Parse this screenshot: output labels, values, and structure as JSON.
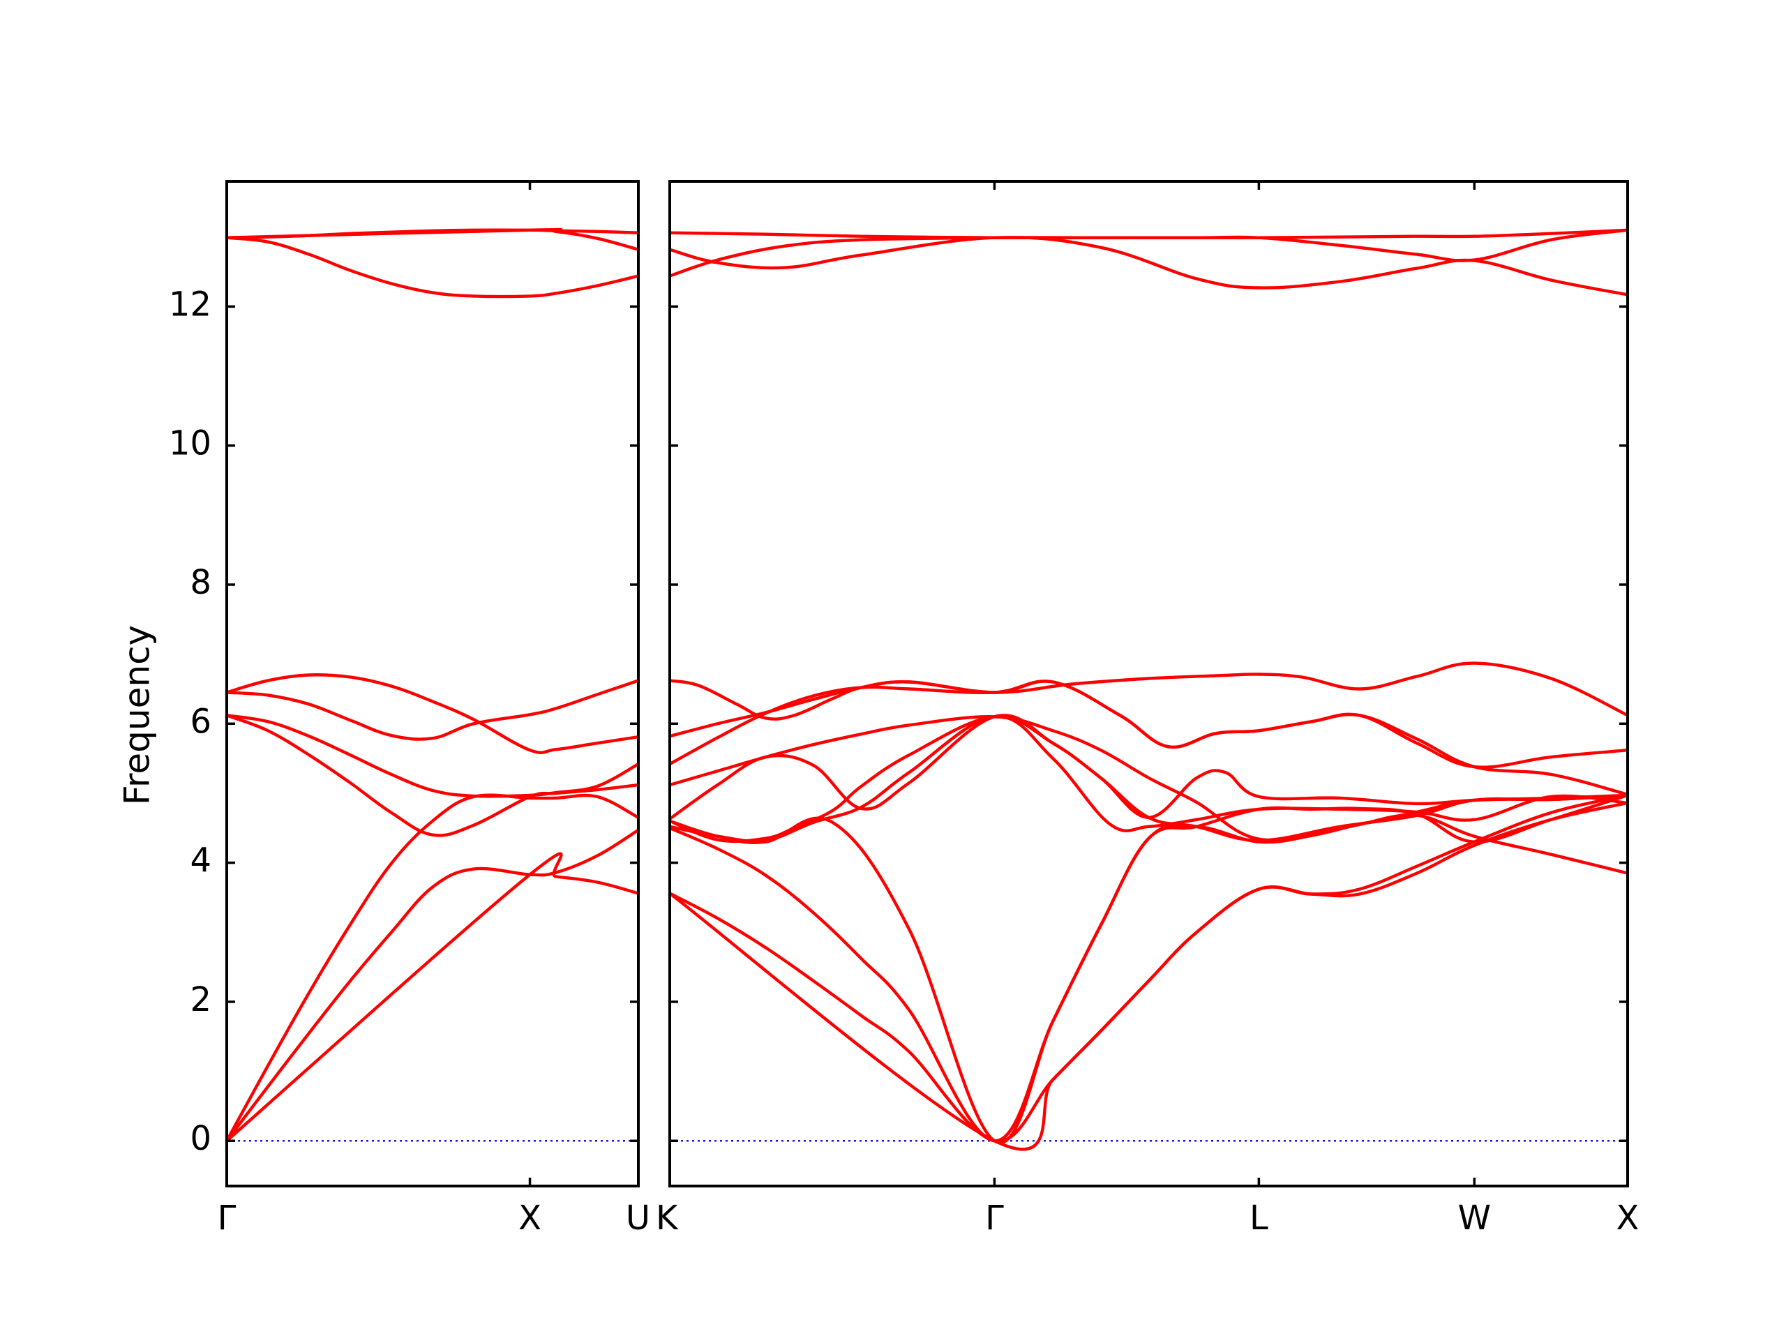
{
  "chart_data": {
    "type": "line",
    "title": "",
    "ylabel": "Frequency",
    "xlabel": "",
    "ylim": [
      -0.65,
      13.8
    ],
    "y_ticks": [
      "0",
      "2",
      "4",
      "6",
      "8",
      "10",
      "12"
    ],
    "grid": false,
    "legend": "none",
    "colors": {
      "bands": "#ff0000",
      "zero_line": "#0000cc",
      "axes": "#000000"
    },
    "panels": [
      {
        "name": "Γ-X-U",
        "x_range": [
          0,
          1
        ],
        "high_symmetry_points": [
          {
            "label": "Γ",
            "x": 0
          },
          {
            "label": "X",
            "x": 0.7365
          },
          {
            "label": "U",
            "x": 1
          }
        ],
        "series": [
          {
            "x": [
              0,
              0.1,
              0.2,
              0.3,
              0.4,
              0.5,
              0.6,
              0.7365,
              0.8,
              0.9,
              1
            ],
            "values": [
              12.99,
              13.0,
              13.02,
              13.05,
              13.07,
              13.09,
              13.1,
              13.1,
              13.09,
              13.08,
              13.06
            ]
          },
          {
            "x": [
              0,
              0.1,
              0.2,
              0.3,
              0.4,
              0.5,
              0.6,
              0.7365,
              0.8,
              0.9,
              1
            ],
            "values": [
              12.99,
              12.93,
              12.75,
              12.52,
              12.33,
              12.2,
              12.15,
              12.15,
              12.19,
              12.3,
              12.44
            ]
          },
          {
            "x": [
              0,
              0.7365,
              0.8,
              0.9,
              1
            ],
            "values": [
              12.99,
              13.1,
              13.08,
              12.98,
              12.82
            ]
          },
          {
            "x": [
              0,
              0.1,
              0.2,
              0.3,
              0.4,
              0.5,
              0.6,
              0.7365,
              0.8,
              0.9,
              1
            ],
            "values": [
              6.45,
              6.62,
              6.7,
              6.67,
              6.54,
              6.32,
              6.06,
              5.62,
              5.63,
              5.72,
              5.81
            ]
          },
          {
            "x": [
              0,
              0.1,
              0.2,
              0.3,
              0.4,
              0.5,
              0.6,
              0.7365,
              0.8,
              0.9,
              1
            ],
            "values": [
              6.45,
              6.41,
              6.28,
              6.05,
              5.83,
              5.79,
              6.0,
              6.13,
              6.22,
              6.42,
              6.62
            ]
          },
          {
            "x": [
              0,
              0.1,
              0.2,
              0.3,
              0.4,
              0.5,
              0.6,
              0.7365,
              0.8,
              0.9,
              1
            ],
            "values": [
              6.12,
              6.03,
              5.82,
              5.55,
              5.27,
              5.04,
              4.96,
              4.97,
              5.01,
              5.1,
              5.42
            ]
          },
          {
            "x": [
              0,
              0.1,
              0.2,
              0.3,
              0.4,
              0.5,
              0.6,
              0.7365,
              0.8,
              0.9,
              1
            ],
            "values": [
              6.12,
              5.9,
              5.55,
              5.15,
              4.72,
              4.4,
              4.54,
              4.95,
              5.0,
              5.05,
              5.12
            ]
          },
          {
            "x": [
              0,
              0.1,
              0.2,
              0.3,
              0.4,
              0.5,
              0.6,
              0.7365,
              0.8,
              0.9,
              1
            ],
            "values": [
              0.0,
              1.08,
              2.13,
              3.11,
              3.99,
              4.6,
              4.95,
              4.93,
              4.93,
              4.95,
              4.65
            ]
          },
          {
            "x": [
              0,
              0.1,
              0.2,
              0.3,
              0.4,
              0.5,
              0.6,
              0.7365,
              0.8,
              0.9,
              1
            ],
            "values": [
              0.0,
              0.78,
              1.55,
              2.3,
              3.0,
              3.65,
              3.91,
              3.83,
              3.86,
              4.1,
              4.47
            ]
          },
          {
            "x": [
              0,
              0.7365,
              0.8,
              0.9,
              1
            ],
            "values": [
              0.0,
              3.83,
              3.8,
              3.72,
              3.56
            ]
          }
        ]
      },
      {
        "name": "K-Γ-L-W-X",
        "x_range": [
          0,
          1
        ],
        "high_symmetry_points": [
          {
            "label": "K",
            "x": 0
          },
          {
            "label": "Γ",
            "x": 0.339
          },
          {
            "label": "L",
            "x": 0.615
          },
          {
            "label": "W",
            "x": 0.84
          },
          {
            "label": "X",
            "x": 1
          }
        ],
        "series": [
          {
            "x": [
              0,
              0.1,
              0.2,
              0.339,
              0.45,
              0.55,
              0.615,
              0.7,
              0.78,
              0.84,
              0.92,
              1
            ],
            "values": [
              13.06,
              13.04,
              13.01,
              12.99,
              12.99,
              12.99,
              12.99,
              13.0,
              13.01,
              13.01,
              13.05,
              13.1
            ]
          },
          {
            "x": [
              0,
              0.05,
              0.12,
              0.2,
              0.339,
              0.45,
              0.55,
              0.615,
              0.7,
              0.78,
              0.84,
              0.92,
              1
            ],
            "values": [
              12.82,
              12.63,
              12.56,
              12.74,
              12.99,
              12.85,
              12.4,
              12.27,
              12.36,
              12.55,
              12.66,
              12.38,
              12.17
            ]
          },
          {
            "x": [
              0,
              0.05,
              0.12,
              0.2,
              0.339,
              0.45,
              0.55,
              0.615,
              0.7,
              0.78,
              0.84,
              0.92,
              1
            ],
            "values": [
              12.44,
              12.67,
              12.87,
              12.96,
              12.99,
              12.99,
              12.99,
              12.99,
              12.88,
              12.75,
              12.67,
              12.96,
              13.1
            ]
          },
          {
            "x": [
              0,
              0.03,
              0.07,
              0.1,
              0.13,
              0.17,
              0.2,
              0.25,
              0.339,
              0.42,
              0.5,
              0.57,
              0.615,
              0.66,
              0.72,
              0.78,
              0.84,
              0.92,
              1
            ],
            "values": [
              6.62,
              6.55,
              6.28,
              6.08,
              6.12,
              6.36,
              6.52,
              6.6,
              6.45,
              6.57,
              6.65,
              6.69,
              6.71,
              6.67,
              6.5,
              6.68,
              6.87,
              6.65,
              6.12
            ]
          },
          {
            "x": [
              0,
              0.05,
              0.1,
              0.15,
              0.2,
              0.25,
              0.339,
              0.4,
              0.47,
              0.52,
              0.57,
              0.615,
              0.67,
              0.72,
              0.78,
              0.84,
              0.92,
              1
            ],
            "values": [
              5.82,
              6.0,
              6.16,
              6.35,
              6.52,
              6.6,
              6.45,
              6.6,
              6.12,
              5.67,
              5.86,
              5.9,
              6.03,
              6.12,
              5.78,
              5.38,
              5.27,
              4.98
            ]
          },
          {
            "x": [
              0,
              0.05,
              0.1,
              0.15,
              0.2,
              0.25,
              0.339,
              0.4,
              0.47,
              0.52,
              0.57,
              0.615,
              0.67,
              0.72,
              0.78,
              0.84,
              0.92,
              1
            ],
            "values": [
              5.42,
              5.8,
              6.15,
              6.4,
              6.52,
              6.5,
              6.45,
              6.6,
              6.12,
              5.67,
              5.86,
              5.9,
              6.03,
              6.12,
              5.72,
              5.38,
              5.52,
              5.62
            ]
          },
          {
            "x": [
              0,
              0.05,
              0.1,
              0.15,
              0.2,
              0.25,
              0.339,
              0.4,
              0.45,
              0.5,
              0.55,
              0.615,
              0.7,
              0.78,
              0.84,
              0.92,
              1
            ],
            "values": [
              5.12,
              5.32,
              5.52,
              5.7,
              5.85,
              5.98,
              6.1,
              5.9,
              5.62,
              5.22,
              4.87,
              4.34,
              4.5,
              4.73,
              4.9,
              4.91,
              4.97
            ]
          },
          {
            "x": [
              0,
              0.05,
              0.1,
              0.15,
              0.2,
              0.25,
              0.339,
              0.4,
              0.45,
              0.5,
              0.55,
              0.615,
              0.7,
              0.78,
              0.84,
              0.92,
              1
            ],
            "values": [
              4.63,
              5.12,
              5.52,
              5.4,
              4.78,
              5.15,
              6.1,
              5.72,
              5.22,
              4.65,
              4.52,
              4.32,
              4.52,
              4.68,
              4.9,
              4.91,
              4.97
            ]
          },
          {
            "x": [
              0,
              0.05,
              0.1,
              0.13,
              0.17,
              0.2,
              0.25,
              0.339,
              0.4,
              0.45,
              0.5,
              0.55,
              0.58,
              0.615,
              0.7,
              0.78,
              0.84,
              0.92,
              1
            ],
            "values": [
              4.6,
              4.33,
              4.35,
              4.5,
              4.75,
              5.1,
              5.55,
              6.1,
              5.72,
              5.22,
              4.65,
              5.22,
              5.3,
              4.95,
              4.93,
              4.85,
              4.9,
              4.93,
              4.97
            ]
          },
          {
            "x": [
              0,
              0.05,
              0.1,
              0.15,
              0.2,
              0.25,
              0.339,
              0.4,
              0.46,
              0.5,
              0.55,
              0.615,
              0.7,
              0.78,
              0.84,
              0.92,
              1
            ],
            "values": [
              4.52,
              4.38,
              4.32,
              4.58,
              4.8,
              5.3,
              6.1,
              5.5,
              4.55,
              4.52,
              4.62,
              4.77,
              4.77,
              4.73,
              4.62,
              4.95,
              4.86
            ]
          },
          {
            "x": [
              0,
              0.05,
              0.1,
              0.17,
              0.25,
              0.339,
              0.4,
              0.45,
              0.5,
              0.55,
              0.615,
              0.67,
              0.72,
              0.78,
              0.84,
              0.92,
              1
            ],
            "values": [
              4.6,
              4.38,
              4.3,
              4.58,
              3.04,
              0.0,
              1.72,
              3.1,
              4.35,
              4.52,
              4.77,
              4.77,
              4.78,
              4.7,
              4.3,
              4.62,
              4.97
            ]
          },
          {
            "x": [
              0,
              0.05,
              0.1,
              0.15,
              0.2,
              0.25,
              0.339,
              0.4,
              0.45,
              0.5,
              0.55,
              0.615,
              0.67,
              0.72,
              0.78,
              0.84,
              0.92,
              1
            ],
            "values": [
              4.5,
              4.2,
              3.82,
              3.28,
              2.62,
              1.88,
              0.0,
              1.72,
              3.1,
              4.35,
              4.52,
              4.3,
              4.39,
              4.55,
              4.68,
              4.38,
              4.12,
              3.85
            ]
          },
          {
            "x": [
              0,
              0.05,
              0.1,
              0.15,
              0.2,
              0.25,
              0.339,
              0.4,
              0.45,
              0.5,
              0.55,
              0.615,
              0.67,
              0.72,
              0.78,
              0.84,
              0.92,
              1
            ],
            "values": [
              3.56,
              3.2,
              2.78,
              2.3,
              1.8,
              1.28,
              0.0,
              0.88,
              1.58,
              2.3,
              3.0,
              3.62,
              3.55,
              3.62,
              3.95,
              4.3,
              4.72,
              4.97
            ]
          },
          {
            "x": [
              0,
              0.339,
              0.4,
              0.45,
              0.5,
              0.55,
              0.615,
              0.67,
              0.72,
              0.78,
              0.84,
              0.92,
              1
            ],
            "values": [
              3.56,
              0.0,
              0.88,
              1.58,
              2.3,
              3.0,
              3.62,
              3.55,
              3.55,
              3.85,
              4.25,
              4.62,
              4.86
            ]
          }
        ]
      }
    ]
  }
}
